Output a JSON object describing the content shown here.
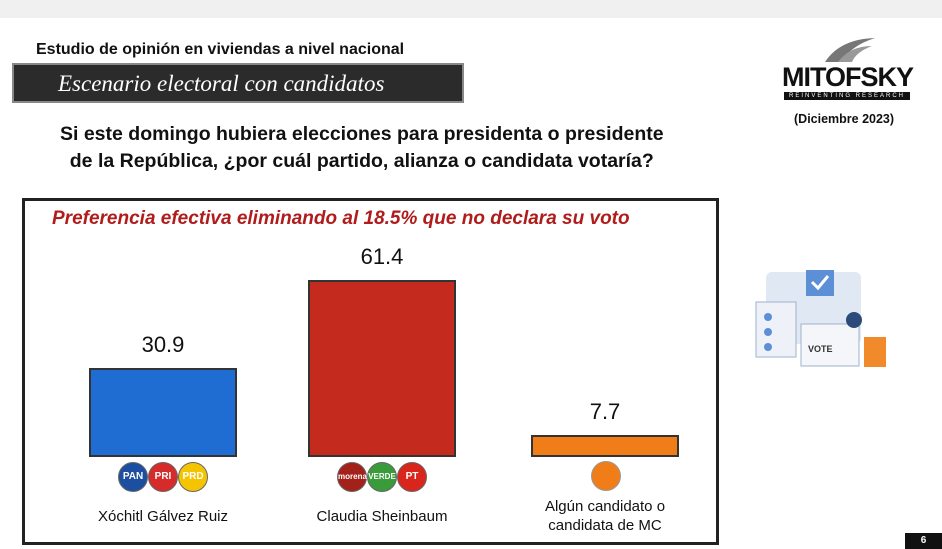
{
  "header": {
    "study": "Estudio de opinión en viviendas a nivel nacional",
    "banner": "Escenario electoral con candidatos",
    "question": [
      "Si este domingo hubiera elecciones para presidenta o presidente",
      "de la República, ¿por cuál partido, alianza o candidata votaría?"
    ],
    "brand": "MITOFSKY",
    "brand_tagline": "REINVENTING RESEARCH",
    "date": "(Diciembre 2023)"
  },
  "chart_data": {
    "type": "bar",
    "title": "Preferencia efectiva eliminando al 18.5% que no declara su voto",
    "categories": [
      "Xóchitl Gálvez Ruiz",
      "Claudia Sheinbaum",
      "Algún candidato o candidata de MC"
    ],
    "series": [
      {
        "values": [
          30.9,
          61.4,
          7.7
        ],
        "colors": [
          "#1f6dd2",
          "#c42a1e",
          "#f07d18"
        ]
      }
    ],
    "party_logos": [
      [
        "PAN",
        "PRI",
        "PRD"
      ],
      [
        "morena",
        "VERDE",
        "PT"
      ],
      []
    ]
  },
  "illustration_label": "VOTE",
  "page_number": "6"
}
